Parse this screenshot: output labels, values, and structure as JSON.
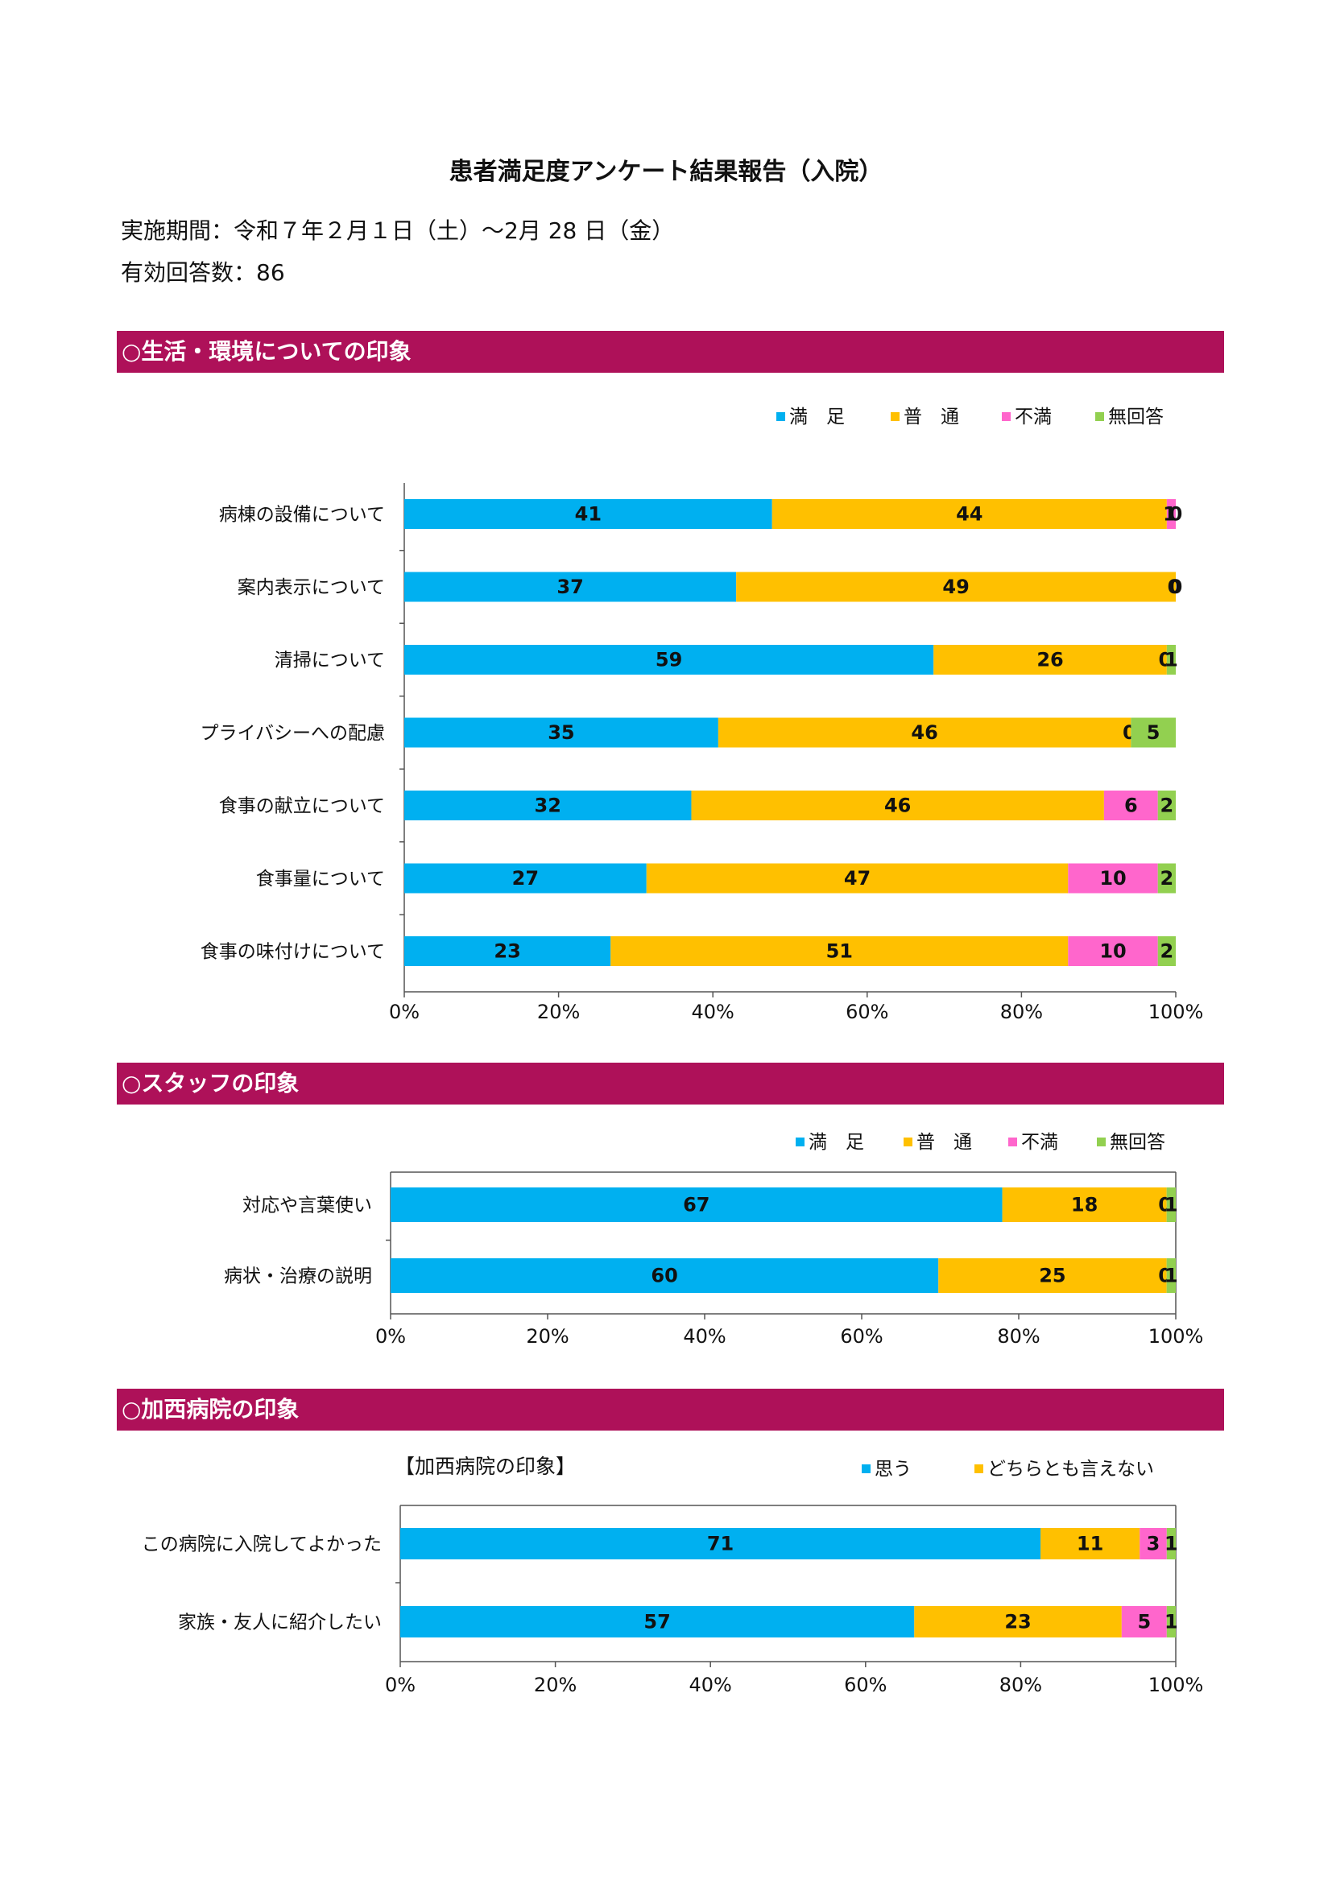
{
  "title": "患者満足度アンケート結果報告（入院）",
  "period": "実施期間：令和７年２月１日（土）～2月 28 日（金）",
  "valid_responses": "有効回答数：86",
  "sections": [
    {
      "heading": "○生活・環境についての印象"
    },
    {
      "heading": "○スタッフの印象"
    },
    {
      "heading": "○加西病院の印象"
    }
  ],
  "colors": {
    "satisfied": "#00b0f0",
    "normal": "#ffc000",
    "dissatisfied": "#ff66cc",
    "no_answer": "#92d050",
    "section_bar": "#ae1159"
  },
  "chart_data": [
    {
      "type": "bar",
      "orientation": "horizontal",
      "stacked": "percent",
      "title": "",
      "legend_position": "top-right",
      "categories": [
        "病棟の設備について",
        "案内表示について",
        "清掃について",
        "プライバシーへの配慮",
        "食事の献立について",
        "食事量について",
        "食事の味付けについて"
      ],
      "series": [
        {
          "name": "満　足",
          "color": "#00b0f0",
          "values": [
            41,
            37,
            59,
            35,
            32,
            27,
            23
          ]
        },
        {
          "name": "普　通",
          "color": "#ffc000",
          "values": [
            44,
            49,
            26,
            46,
            46,
            47,
            51
          ]
        },
        {
          "name": "不満",
          "color": "#ff66cc",
          "values": [
            1,
            0,
            0,
            0,
            6,
            10,
            10
          ]
        },
        {
          "name": "無回答",
          "color": "#92d050",
          "values": [
            0,
            0,
            1,
            5,
            2,
            2,
            2
          ]
        }
      ],
      "xticks": [
        "0%",
        "20%",
        "40%",
        "60%",
        "80%",
        "100%"
      ],
      "xlim": [
        0,
        100
      ]
    },
    {
      "type": "bar",
      "orientation": "horizontal",
      "stacked": "percent",
      "title": "",
      "legend_position": "top-right",
      "categories": [
        "対応や言葉使い",
        "病状・治療の説明"
      ],
      "series": [
        {
          "name": "満　足",
          "color": "#00b0f0",
          "values": [
            67,
            60
          ]
        },
        {
          "name": "普　通",
          "color": "#ffc000",
          "values": [
            18,
            25
          ]
        },
        {
          "name": "不満",
          "color": "#ff66cc",
          "values": [
            0,
            0
          ]
        },
        {
          "name": "無回答",
          "color": "#92d050",
          "values": [
            1,
            1
          ]
        }
      ],
      "xticks": [
        "0%",
        "20%",
        "40%",
        "60%",
        "80%",
        "100%"
      ],
      "xlim": [
        0,
        100
      ]
    },
    {
      "type": "bar",
      "orientation": "horizontal",
      "stacked": "percent",
      "title": "【加西病院の印象】",
      "legend_position": "top-right",
      "categories": [
        "この病院に入院してよかった",
        "家族・友人に紹介したい"
      ],
      "series": [
        {
          "name": "思う",
          "color": "#00b0f0",
          "values": [
            71,
            57
          ]
        },
        {
          "name": "どちらとも言えない",
          "color": "#ffc000",
          "values": [
            11,
            23
          ]
        },
        {
          "name": "",
          "color": "#ff66cc",
          "values": [
            3,
            5
          ]
        },
        {
          "name": "",
          "color": "#92d050",
          "values": [
            1,
            1
          ]
        }
      ],
      "xticks": [
        "0%",
        "20%",
        "40%",
        "60%",
        "80%",
        "100%"
      ],
      "xlim": [
        0,
        100
      ]
    }
  ]
}
